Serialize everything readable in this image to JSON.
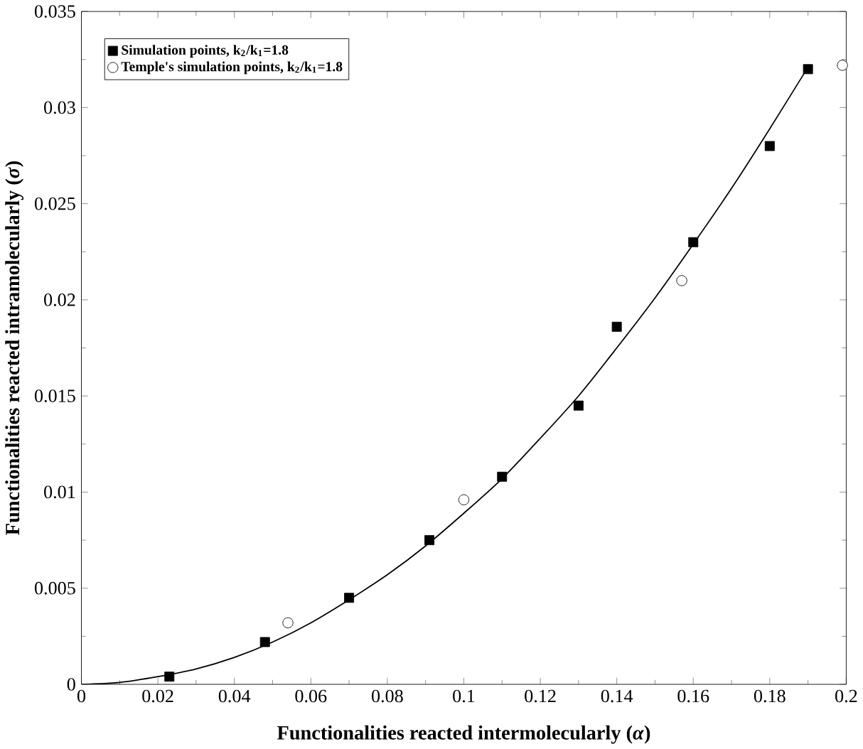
{
  "chart_data": {
    "type": "scatter",
    "xlabel": "Functionalities reacted intermolecularly (*α*)",
    "ylabel": "Functionalities reacted intramolecularly (*σ*)",
    "xlim": [
      0,
      0.2
    ],
    "ylim": [
      0,
      0.035
    ],
    "xticks": [
      0,
      0.02,
      0.04,
      0.06,
      0.08,
      0.1,
      0.12,
      0.14,
      0.16,
      0.18,
      0.2
    ],
    "yticks": [
      0,
      0.005,
      0.01,
      0.015,
      0.02,
      0.025,
      0.03,
      0.035
    ],
    "legend": "top left",
    "grid": false,
    "series": [
      {
        "name": "Simulation points, k$_{2}$/k$_{1}$=1.8",
        "marker": "square",
        "color": "#000000",
        "x": [
          0.023,
          0.048,
          0.07,
          0.091,
          0.11,
          0.13,
          0.14,
          0.16,
          0.18,
          0.19
        ],
        "values": [
          0.0004,
          0.0022,
          0.0045,
          0.0075,
          0.0108,
          0.0145,
          0.0186,
          0.023,
          0.028,
          0.032
        ]
      },
      {
        "name": "Temple's simulation points, k$_{2}$/k$_{1}$=1.8",
        "marker": "circle",
        "color": "#000000",
        "x": [
          0.054,
          0.1,
          0.157,
          0.199
        ],
        "values": [
          0.0032,
          0.0096,
          0.021,
          0.0322
        ]
      },
      {
        "type": "line",
        "marker": "none",
        "color": "#000000",
        "x": [
          0,
          0.01,
          0.02,
          0.03,
          0.04,
          0.05,
          0.06,
          0.07,
          0.08,
          0.09,
          0.1,
          0.11,
          0.12,
          0.13,
          0.14,
          0.15,
          0.16,
          0.17,
          0.18,
          0.19
        ],
        "values": [
          0,
          0.0001,
          0.0004,
          0.0008,
          0.0014,
          0.0022,
          0.0032,
          0.0044,
          0.0057,
          0.0072,
          0.0089,
          0.0107,
          0.0128,
          0.015,
          0.0175,
          0.0201,
          0.0229,
          0.0258,
          0.0289,
          0.0321
        ]
      }
    ]
  }
}
